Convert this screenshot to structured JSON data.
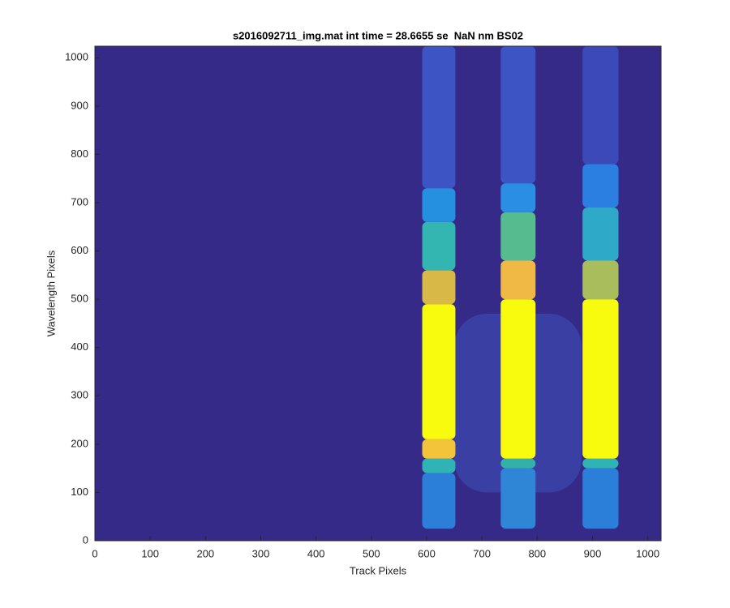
{
  "chart_data": {
    "type": "image",
    "title": "s2016092711_img.mat int time = 28.6655 se  NaN nm BS02",
    "x_label": "Track Pixels",
    "y_label": "Wavelength Pixels",
    "xlim": [
      0,
      1024
    ],
    "ylim": [
      0,
      1024
    ],
    "xticks": [
      0,
      100,
      200,
      300,
      400,
      500,
      600,
      700,
      800,
      900,
      1000
    ],
    "yticks": [
      0,
      100,
      200,
      300,
      400,
      500,
      600,
      700,
      800,
      900,
      1000
    ],
    "background": "#352a87",
    "stripes": [
      {
        "x": [
          650,
          880
        ],
        "segments": [
          {
            "y": [
              100,
              470
            ],
            "color": "#3a3fa3"
          }
        ]
      },
      {
        "x": [
          592,
          652
        ],
        "segments": [
          {
            "y": [
              25,
              140
            ],
            "color": "#2b7fd8"
          },
          {
            "y": [
              140,
              170
            ],
            "color": "#2fb3b5"
          },
          {
            "y": [
              170,
              210
            ],
            "color": "#f3c43a"
          },
          {
            "y": [
              210,
              490
            ],
            "color": "#f9fb0e"
          },
          {
            "y": [
              490,
              560
            ],
            "color": "#d8b846"
          },
          {
            "y": [
              560,
              660
            ],
            "color": "#33b5b2"
          },
          {
            "y": [
              660,
              730
            ],
            "color": "#2690e0"
          },
          {
            "y": [
              730,
              1024
            ],
            "color": "#3d55c4"
          }
        ]
      },
      {
        "x": [
          734,
          797
        ],
        "segments": [
          {
            "y": [
              25,
              150
            ],
            "color": "#2f86d6"
          },
          {
            "y": [
              150,
              170
            ],
            "color": "#35b0a8"
          },
          {
            "y": [
              170,
              500
            ],
            "color": "#f9fb0e"
          },
          {
            "y": [
              500,
              580
            ],
            "color": "#f0b845"
          },
          {
            "y": [
              580,
              680
            ],
            "color": "#56bc8f"
          },
          {
            "y": [
              680,
              740
            ],
            "color": "#2a8ee4"
          },
          {
            "y": [
              740,
              1024
            ],
            "color": "#3d55c4"
          }
        ]
      },
      {
        "x": [
          882,
          947
        ],
        "segments": [
          {
            "y": [
              25,
              150
            ],
            "color": "#2b7fd8"
          },
          {
            "y": [
              150,
              170
            ],
            "color": "#2fb3b5"
          },
          {
            "y": [
              170,
              500
            ],
            "color": "#f9fb0e"
          },
          {
            "y": [
              500,
              580
            ],
            "color": "#a9bd5c"
          },
          {
            "y": [
              580,
              690
            ],
            "color": "#2fa9c8"
          },
          {
            "y": [
              690,
              780
            ],
            "color": "#2a7fe0"
          },
          {
            "y": [
              780,
              1024
            ],
            "color": "#3b4ab8"
          }
        ]
      }
    ]
  }
}
